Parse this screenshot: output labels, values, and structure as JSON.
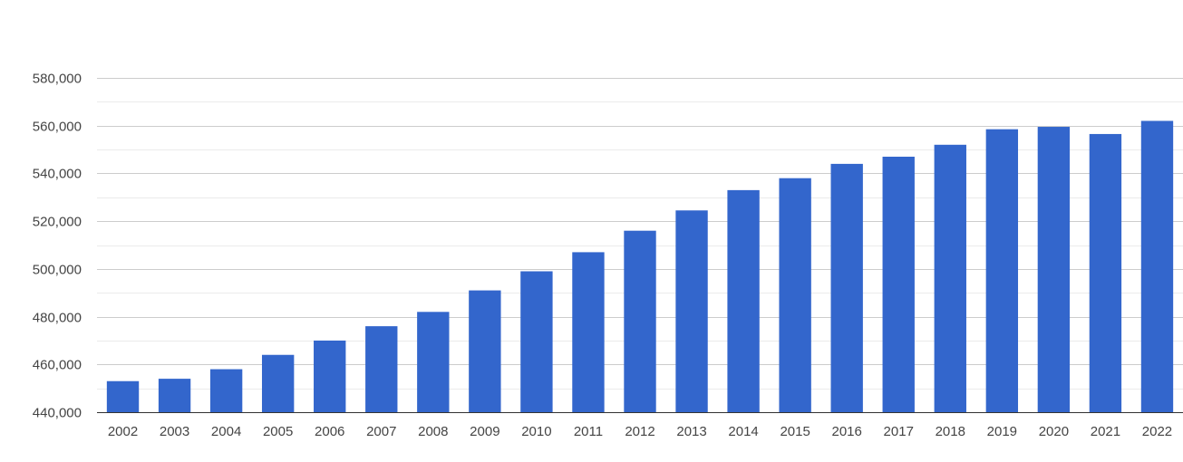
{
  "chart_data": {
    "type": "bar",
    "title": "",
    "xlabel": "",
    "ylabel": "",
    "categories": [
      "2002",
      "2003",
      "2004",
      "2005",
      "2006",
      "2007",
      "2008",
      "2009",
      "2010",
      "2011",
      "2012",
      "2013",
      "2014",
      "2015",
      "2016",
      "2017",
      "2018",
      "2019",
      "2020",
      "2021",
      "2022"
    ],
    "values": [
      453000,
      454000,
      458000,
      464000,
      470000,
      476000,
      482000,
      491000,
      499000,
      507000,
      516000,
      524500,
      533000,
      538000,
      544000,
      547000,
      552000,
      558500,
      559500,
      556500,
      562000
    ],
    "ylim": [
      440000,
      580000
    ],
    "yticks": [
      440000,
      460000,
      480000,
      500000,
      520000,
      540000,
      560000,
      580000
    ],
    "ytick_labels": [
      "440,000",
      "460,000",
      "480,000",
      "500,000",
      "520,000",
      "540,000",
      "560,000",
      "580,000"
    ],
    "grid": true,
    "legend": "none",
    "bar_color": "#3366cc"
  }
}
